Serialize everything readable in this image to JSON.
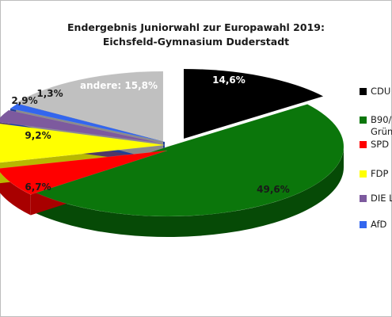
{
  "title_line1": "Endergebnis Juniorwahl zur Europawahl 2019:",
  "title_line2": "Eichsfeld-Gymnasium Duderstadt",
  "chart_data": {
    "type": "pie",
    "title": "Endergebnis Juniorwahl zur Europawahl 2019: Eichsfeld-Gymnasium Duderstadt",
    "slices": [
      {
        "label": "14,6%",
        "value": 14.6,
        "color": "#000000",
        "side": "#000000",
        "label_color": "#ffffff"
      },
      {
        "label": "49,6%",
        "value": 49.6,
        "color": "#0b760b",
        "side": "#064a06",
        "label_color": "#1a1a1a"
      },
      {
        "label": "6,7%",
        "value": 6.7,
        "color": "#ff0000",
        "side": "#a80000",
        "label_color": "#1a1a1a"
      },
      {
        "label": "9,2%",
        "value": 9.2,
        "color": "#ffff00",
        "side": "#b8b800",
        "label_color": "#1a1a1a"
      },
      {
        "label": "2,9%",
        "value": 2.9,
        "color": "#7d5a9e",
        "side": "#4f3866",
        "label_color": "#1a1a1a"
      },
      {
        "label": "1,3%",
        "value": 1.3,
        "color": "#3366ee",
        "side": "#1f3f99",
        "label_color": "#1a1a1a"
      },
      {
        "label": "andere: 15,8%",
        "value": 15.8,
        "color": "#c0c0c0",
        "side": "#8a8a8a",
        "label_color": "#ffffff"
      }
    ],
    "legend": [
      {
        "label": "CDU",
        "color": "#000000"
      },
      {
        "label": "B90/\nGrün",
        "color": "#0b760b"
      },
      {
        "label": "SPD",
        "color": "#ff0000"
      },
      {
        "label": "FDP",
        "color": "#ffff00"
      },
      {
        "label": "DIE L",
        "color": "#7d5a9e"
      },
      {
        "label": "AfD",
        "color": "#3366ee"
      }
    ],
    "legend_position": "right"
  }
}
